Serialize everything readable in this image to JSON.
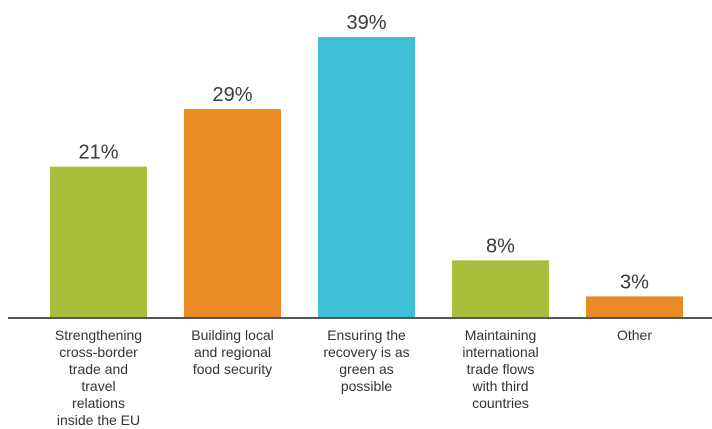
{
  "chart_data": {
    "type": "bar",
    "categories": [
      [
        "Strengthening",
        "cross-border",
        "trade and",
        "travel",
        "relations",
        "inside the EU"
      ],
      [
        "Building local",
        "and regional",
        "food security"
      ],
      [
        "Ensuring the",
        "recovery is as",
        "green as",
        "possible"
      ],
      [
        "Maintaining",
        "international",
        "trade flows",
        "with third",
        "countries"
      ],
      [
        "Other"
      ]
    ],
    "values": [
      21,
      29,
      39,
      8,
      3
    ],
    "data_labels": [
      "21%",
      "29%",
      "39%",
      "8%",
      "3%"
    ],
    "bar_colors": [
      "#a7bf3a",
      "#ea8a25",
      "#3fc0d6",
      "#a7bf3a",
      "#ea8a25"
    ],
    "axis_color": "#555555",
    "unit": "%",
    "ylim": [
      0,
      39
    ],
    "grid": false,
    "legend": "none",
    "title": "",
    "xlabel": "",
    "ylabel": ""
  }
}
